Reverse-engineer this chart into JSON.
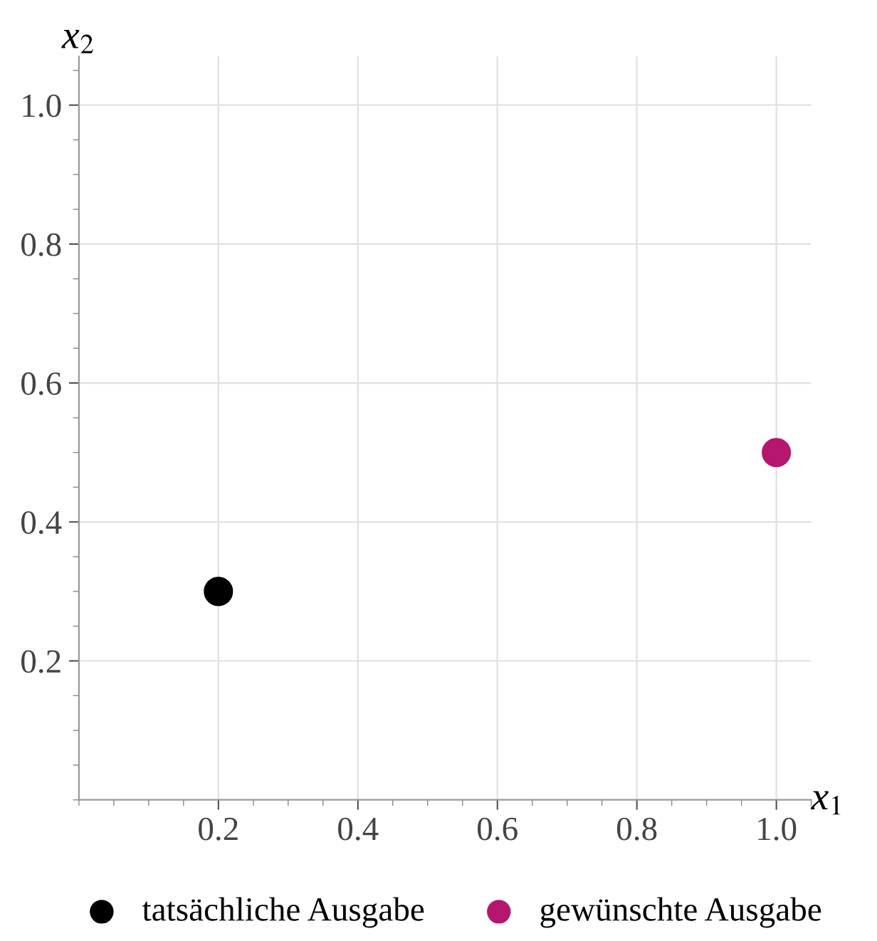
{
  "chart_data": {
    "type": "scatter",
    "xlabel": "x$_{1}$",
    "ylabel": "x$_{2}$",
    "series": [
      {
        "name": "tatsächliche Ausgabe",
        "color": "#000000",
        "x": [
          0.2
        ],
        "values": [
          0.3
        ]
      },
      {
        "name": "gewünschte Ausgabe",
        "color": "#b5176e",
        "x": [
          1.0
        ],
        "values": [
          0.5
        ]
      }
    ],
    "xlim": [
      0,
      1.05
    ],
    "ylim": [
      0,
      1.07
    ],
    "xticks": [
      0.2,
      0.4,
      0.6,
      0.8,
      {
        "value": 1,
        "label": "1.0"
      }
    ],
    "yticks": [
      0.2,
      0.4,
      0.6,
      0.8,
      {
        "value": 1,
        "label": "1.0"
      }
    ],
    "grid": true,
    "legend": "bottom",
    "marker": "circle"
  }
}
